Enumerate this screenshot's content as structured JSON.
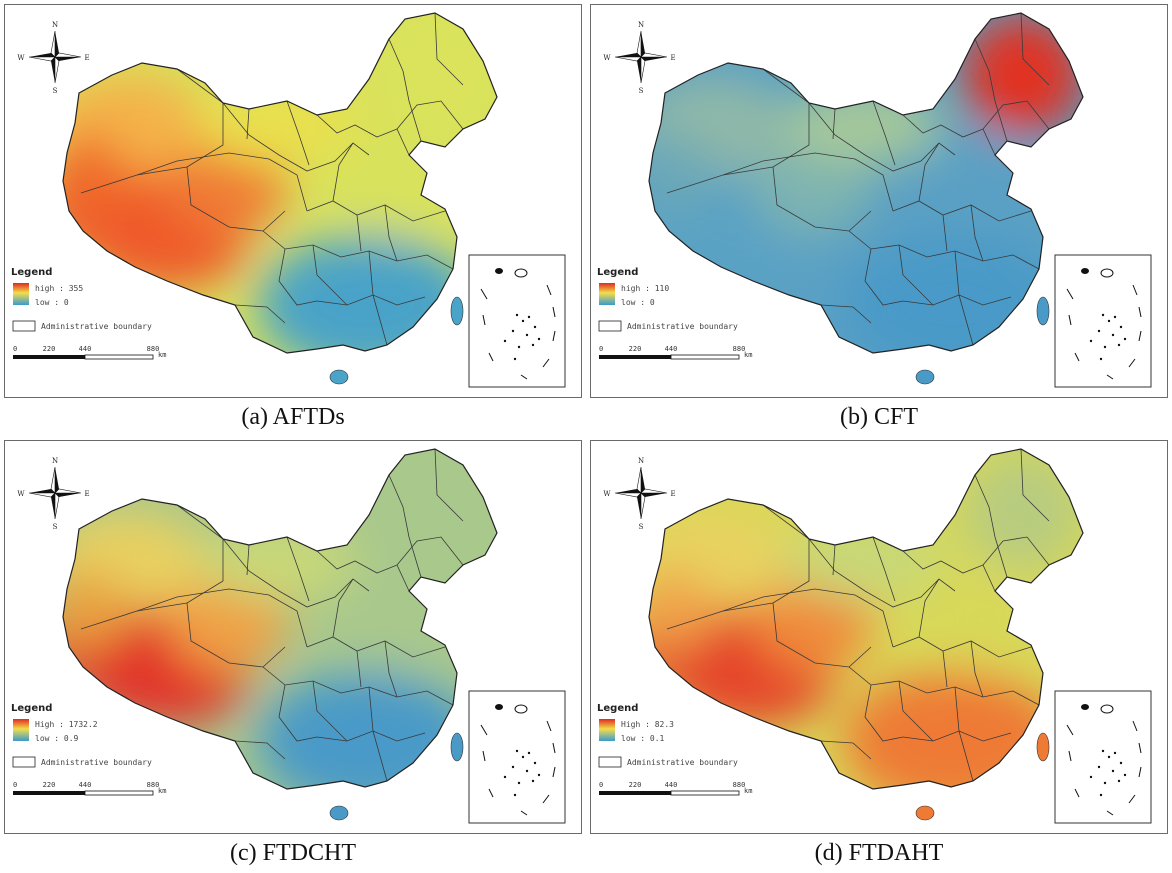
{
  "figure": {
    "panels": [
      {
        "id": "a",
        "caption": "(a) AFTDs",
        "palette": {
          "west": "#f06a2a",
          "northwest": "#f4b24a",
          "north": "#e9e04e",
          "east": "#d8e25c",
          "south": "#4aa3c8",
          "tibet": "#ef5a2a",
          "qinghai": "#f07a34",
          "northeast": "#dbe35c"
        },
        "legend": {
          "title": "Legend",
          "high": "high : 355",
          "low": "low : 0",
          "boundary": "Administrative boundary"
        },
        "scale": {
          "ticks": [
            "0",
            "220",
            "440",
            "880"
          ],
          "unit": "km"
        },
        "compass": {
          "n": "N",
          "s": "S",
          "e": "E",
          "w": "W"
        }
      },
      {
        "id": "b",
        "caption": "(b) CFT",
        "palette": {
          "west": "#6aa8b8",
          "northwest": "#8fb8a8",
          "north": "#a6c89a",
          "east": "#5aa0c4",
          "south": "#4a9ac8",
          "tibet": "#5aa2c4",
          "qinghai": "#7eb4b0",
          "northeast": "#e13224"
        },
        "legend": {
          "title": "Legend",
          "high": "high : 110",
          "low": "low : 0",
          "boundary": "Administrative boundary"
        },
        "scale": {
          "ticks": [
            "0",
            "220",
            "440",
            "880"
          ],
          "unit": "km"
        },
        "compass": {
          "n": "N",
          "s": "S",
          "e": "E",
          "w": "W"
        }
      },
      {
        "id": "c",
        "caption": "(c) FTDCHT",
        "palette": {
          "west": "#e8a040",
          "northwest": "#e8d060",
          "north": "#c8d878",
          "east": "#a8c88c",
          "south": "#4a9ac8",
          "tibet": "#e2362a",
          "qinghai": "#f0a044",
          "northeast": "#a8c88c"
        },
        "legend": {
          "title": "Legend",
          "high": "High : 1732.2",
          "low": "low : 0.9",
          "boundary": "Administrative boundary"
        },
        "scale": {
          "ticks": [
            "0",
            "220",
            "440",
            "880"
          ],
          "unit": "km"
        },
        "compass": {
          "n": "N",
          "s": "S",
          "e": "E",
          "w": "W"
        }
      },
      {
        "id": "d",
        "caption": "(d) FTDAHT",
        "palette": {
          "west": "#f0a24a",
          "northwest": "#e8d260",
          "north": "#c8d878",
          "east": "#d8d858",
          "south": "#ee7a34",
          "tibet": "#e5442a",
          "qinghai": "#f08a3a",
          "northeast": "#b8cc80"
        },
        "legend": {
          "title": "Legend",
          "high": "High : 82.3",
          "low": "low : 0.1",
          "boundary": "Administrative boundary"
        },
        "scale": {
          "ticks": [
            "0",
            "220",
            "440",
            "880"
          ],
          "unit": "km"
        },
        "compass": {
          "n": "N",
          "s": "S",
          "e": "E",
          "w": "W"
        }
      }
    ]
  }
}
